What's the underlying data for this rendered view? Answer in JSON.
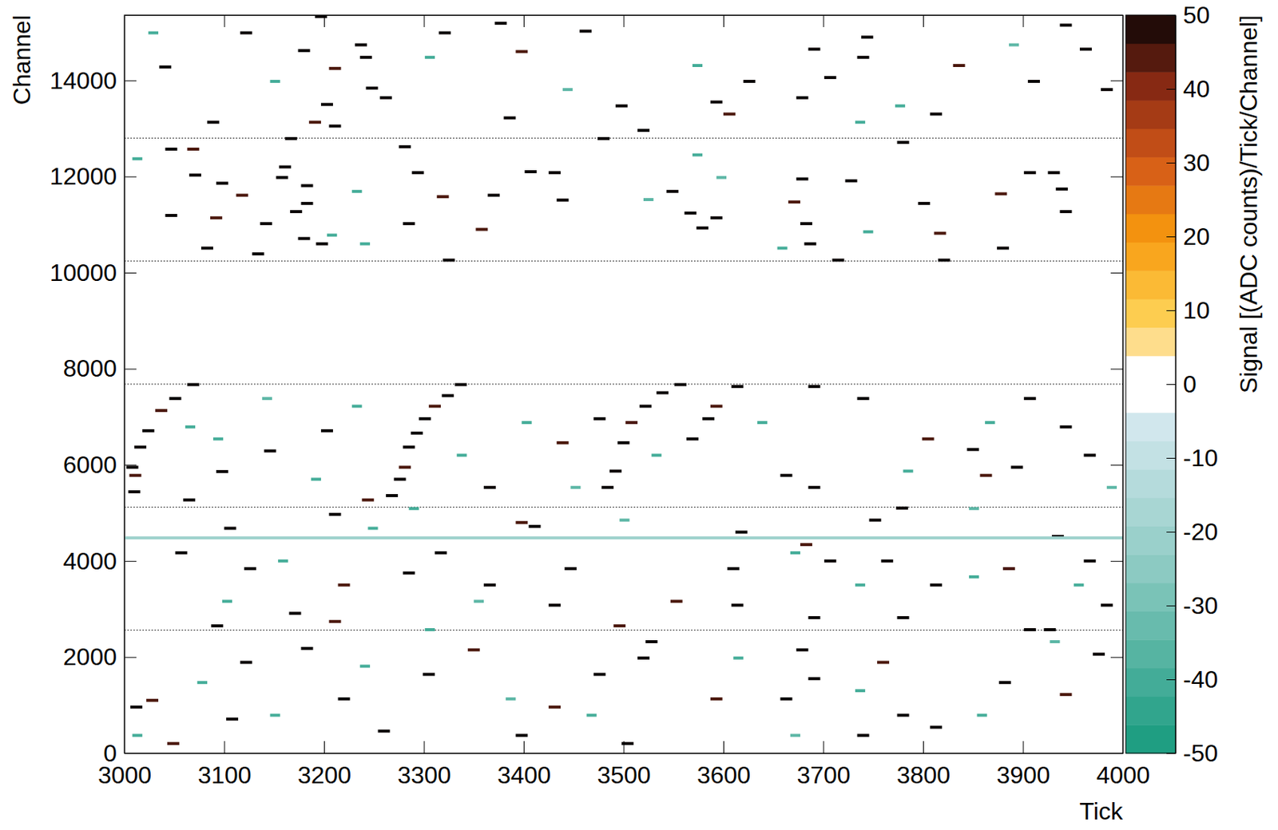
{
  "chart_data": {
    "type": "heatmap",
    "x_label": "Tick",
    "y_label": "Channel",
    "xlim": [
      3000,
      4000
    ],
    "ylim": [
      0,
      15360
    ],
    "xticks": [
      3000,
      3100,
      3200,
      3300,
      3400,
      3500,
      3600,
      3700,
      3800,
      3900,
      4000
    ],
    "yticks": [
      0,
      2000,
      4000,
      6000,
      8000,
      10000,
      12000,
      14000
    ],
    "boundaries": [
      2560,
      5120,
      7680,
      10240,
      12800
    ],
    "colorbar": {
      "label": "Signal [(ADC counts)/Tick/Channel]",
      "range": [
        -50,
        50
      ],
      "ticks": [
        -50,
        -40,
        -30,
        -20,
        -10,
        0,
        10,
        20,
        30,
        40,
        50
      ]
    },
    "cells": [
      [
        3191,
        3203,
        15330,
        50
      ],
      [
        3456,
        3468,
        15025,
        50
      ],
      [
        3174,
        3186,
        14620,
        50
      ],
      [
        3231,
        3243,
        14740,
        50
      ],
      [
        3236,
        3248,
        14480,
        50
      ],
      [
        3205,
        3217,
        14250,
        45
      ],
      [
        3256,
        3268,
        13640,
        50
      ],
      [
        3242,
        3254,
        13840,
        50
      ],
      [
        3197,
        3209,
        13500,
        50
      ],
      [
        3185,
        3197,
        13130,
        45
      ],
      [
        3205,
        3217,
        13050,
        50
      ],
      [
        3380,
        3392,
        13220,
        50
      ],
      [
        3492,
        3504,
        13470,
        50
      ],
      [
        3514,
        3526,
        12960,
        50
      ],
      [
        3600,
        3612,
        13300,
        45
      ],
      [
        3673,
        3685,
        13640,
        50
      ],
      [
        3701,
        3713,
        14060,
        50
      ],
      [
        3734,
        3746,
        14480,
        50
      ],
      [
        3738,
        3750,
        14900,
        50
      ],
      [
        3685,
        3697,
        14650,
        50
      ],
      [
        3957,
        3969,
        14650,
        50
      ],
      [
        3937,
        3949,
        15150,
        50
      ],
      [
        3830,
        3842,
        14310,
        45
      ],
      [
        3905,
        3917,
        13980,
        50
      ],
      [
        3978,
        3990,
        13810,
        50
      ],
      [
        3807,
        3819,
        13300,
        50
      ],
      [
        3620,
        3632,
        13980,
        50
      ],
      [
        3587,
        3599,
        13550,
        50
      ],
      [
        3315,
        3327,
        14990,
        50
      ],
      [
        3371,
        3383,
        15190,
        50
      ],
      [
        3392,
        3404,
        14600,
        45
      ],
      [
        3116,
        3128,
        14990,
        50
      ],
      [
        3035,
        3047,
        14280,
        50
      ],
      [
        3083,
        3095,
        13130,
        50
      ],
      [
        3024,
        3034,
        14990,
        -40
      ],
      [
        3301,
        3311,
        14480,
        -40
      ],
      [
        3439,
        3449,
        13810,
        -35
      ],
      [
        3569,
        3579,
        14310,
        -40
      ],
      [
        3772,
        3782,
        13470,
        -40
      ],
      [
        3886,
        3896,
        14740,
        -35
      ],
      [
        3146,
        3156,
        13980,
        -40
      ],
      [
        3732,
        3742,
        13130,
        -40
      ],
      [
        3161,
        3173,
        12790,
        50
      ],
      [
        3041,
        3053,
        12570,
        50
      ],
      [
        3063,
        3075,
        12570,
        45
      ],
      [
        3155,
        3167,
        12200,
        50
      ],
      [
        3065,
        3077,
        12030,
        50
      ],
      [
        3092,
        3104,
        11860,
        50
      ],
      [
        3152,
        3164,
        11980,
        50
      ],
      [
        3177,
        3189,
        11810,
        50
      ],
      [
        3112,
        3124,
        11610,
        45
      ],
      [
        3177,
        3189,
        11440,
        50
      ],
      [
        3166,
        3178,
        11270,
        50
      ],
      [
        3136,
        3148,
        11020,
        50
      ],
      [
        3041,
        3053,
        11190,
        50
      ],
      [
        3086,
        3098,
        11140,
        45
      ],
      [
        3174,
        3186,
        10710,
        50
      ],
      [
        3192,
        3204,
        10600,
        50
      ],
      [
        3077,
        3089,
        10510,
        50
      ],
      [
        3128,
        3140,
        10390,
        50
      ],
      [
        3275,
        3287,
        12620,
        50
      ],
      [
        3288,
        3300,
        12080,
        50
      ],
      [
        3313,
        3325,
        11580,
        45
      ],
      [
        3364,
        3376,
        11610,
        50
      ],
      [
        3401,
        3413,
        12100,
        50
      ],
      [
        3425,
        3437,
        12080,
        50
      ],
      [
        3433,
        3445,
        11510,
        50
      ],
      [
        3279,
        3291,
        11020,
        50
      ],
      [
        3352,
        3364,
        10900,
        45
      ],
      [
        3543,
        3555,
        11690,
        50
      ],
      [
        3561,
        3573,
        11240,
        50
      ],
      [
        3573,
        3585,
        10930,
        50
      ],
      [
        3587,
        3599,
        11140,
        50
      ],
      [
        3673,
        3685,
        11950,
        50
      ],
      [
        3665,
        3677,
        11470,
        45
      ],
      [
        3677,
        3689,
        11020,
        50
      ],
      [
        3681,
        3693,
        10600,
        50
      ],
      [
        3722,
        3734,
        11910,
        50
      ],
      [
        3774,
        3786,
        12710,
        50
      ],
      [
        3795,
        3807,
        11440,
        50
      ],
      [
        3811,
        3823,
        10820,
        45
      ],
      [
        3874,
        3886,
        10510,
        50
      ],
      [
        3901,
        3913,
        12080,
        50
      ],
      [
        3925,
        3937,
        12080,
        50
      ],
      [
        3933,
        3945,
        11740,
        50
      ],
      [
        3937,
        3949,
        11270,
        50
      ],
      [
        3872,
        3884,
        11640,
        45
      ],
      [
        3709,
        3721,
        10260,
        50
      ],
      [
        3815,
        3827,
        10260,
        50
      ],
      [
        3319,
        3331,
        10260,
        50
      ],
      [
        3474,
        3486,
        12790,
        50
      ],
      [
        3228,
        3238,
        11690,
        -40
      ],
      [
        3236,
        3246,
        10600,
        -40
      ],
      [
        3593,
        3603,
        11980,
        -35
      ],
      [
        3569,
        3579,
        12450,
        -40
      ],
      [
        3654,
        3664,
        10510,
        -40
      ],
      [
        3740,
        3750,
        10850,
        -40
      ],
      [
        3520,
        3530,
        11520,
        -35
      ],
      [
        3008,
        3018,
        12370,
        -40
      ],
      [
        3203,
        3213,
        10780,
        -40
      ],
      [
        3063,
        3075,
        7670,
        50
      ],
      [
        3045,
        3057,
        7380,
        50
      ],
      [
        3031,
        3043,
        7130,
        45
      ],
      [
        3018,
        3030,
        6710,
        50
      ],
      [
        3010,
        3022,
        6370,
        50
      ],
      [
        3002,
        3014,
        5950,
        50
      ],
      [
        3005,
        3017,
        5780,
        45
      ],
      [
        3004,
        3016,
        5440,
        50
      ],
      [
        3331,
        3343,
        7670,
        50
      ],
      [
        3318,
        3330,
        7440,
        50
      ],
      [
        3305,
        3317,
        7220,
        45
      ],
      [
        3295,
        3307,
        6960,
        50
      ],
      [
        3287,
        3299,
        6660,
        50
      ],
      [
        3279,
        3291,
        6370,
        50
      ],
      [
        3275,
        3287,
        5950,
        45
      ],
      [
        3270,
        3282,
        5700,
        50
      ],
      [
        3262,
        3274,
        5360,
        50
      ],
      [
        3551,
        3563,
        7670,
        50
      ],
      [
        3533,
        3545,
        7500,
        50
      ],
      [
        3516,
        3528,
        7220,
        50
      ],
      [
        3502,
        3514,
        6880,
        45
      ],
      [
        3494,
        3506,
        6460,
        50
      ],
      [
        3486,
        3498,
        5870,
        50
      ],
      [
        3478,
        3490,
        5530,
        50
      ],
      [
        3608,
        3620,
        7630,
        50
      ],
      [
        3587,
        3599,
        7220,
        45
      ],
      [
        3579,
        3591,
        6960,
        50
      ],
      [
        3563,
        3575,
        6540,
        50
      ],
      [
        3734,
        3746,
        7380,
        50
      ],
      [
        3685,
        3697,
        7630,
        50
      ],
      [
        3799,
        3811,
        6540,
        45
      ],
      [
        3901,
        3913,
        7380,
        50
      ],
      [
        3937,
        3949,
        6790,
        50
      ],
      [
        3961,
        3973,
        6200,
        50
      ],
      [
        3888,
        3900,
        5950,
        50
      ],
      [
        3857,
        3869,
        5780,
        45
      ],
      [
        3844,
        3856,
        6320,
        50
      ],
      [
        3685,
        3697,
        5530,
        50
      ],
      [
        3657,
        3669,
        5780,
        50
      ],
      [
        3470,
        3482,
        6960,
        50
      ],
      [
        3433,
        3445,
        6460,
        45
      ],
      [
        3197,
        3209,
        6710,
        50
      ],
      [
        3140,
        3152,
        6290,
        50
      ],
      [
        3092,
        3104,
        5860,
        50
      ],
      [
        3360,
        3372,
        5530,
        50
      ],
      [
        3238,
        3250,
        5270,
        45
      ],
      [
        3059,
        3071,
        5270,
        50
      ],
      [
        3061,
        3071,
        6790,
        -40
      ],
      [
        3089,
        3099,
        6540,
        -40
      ],
      [
        3138,
        3148,
        7380,
        -35
      ],
      [
        3228,
        3238,
        7220,
        -40
      ],
      [
        3333,
        3343,
        6200,
        -40
      ],
      [
        3398,
        3408,
        6880,
        -40
      ],
      [
        3447,
        3457,
        5530,
        -35
      ],
      [
        3634,
        3644,
        6880,
        -40
      ],
      [
        3780,
        3790,
        5870,
        -40
      ],
      [
        3862,
        3872,
        6880,
        -40
      ],
      [
        3984,
        3994,
        5530,
        -35
      ],
      [
        3528,
        3538,
        6200,
        -40
      ],
      [
        3187,
        3197,
        5700,
        -40
      ],
      [
        3205,
        3217,
        4970,
        50
      ],
      [
        3100,
        3112,
        4680,
        50
      ],
      [
        3392,
        3404,
        4800,
        45
      ],
      [
        3405,
        3417,
        4720,
        50
      ],
      [
        3773,
        3785,
        5100,
        50
      ],
      [
        3746,
        3758,
        4850,
        50
      ],
      [
        3612,
        3624,
        4600,
        50
      ],
      [
        3677,
        3689,
        4340,
        45
      ],
      [
        3701,
        3713,
        4000,
        50
      ],
      [
        3758,
        3770,
        4000,
        50
      ],
      [
        3051,
        3063,
        4170,
        50
      ],
      [
        3120,
        3132,
        3840,
        50
      ],
      [
        3214,
        3226,
        3500,
        45
      ],
      [
        3279,
        3291,
        3750,
        50
      ],
      [
        3311,
        3323,
        4170,
        50
      ],
      [
        3360,
        3372,
        3500,
        50
      ],
      [
        3441,
        3453,
        3840,
        50
      ],
      [
        3547,
        3559,
        3160,
        45
      ],
      [
        3604,
        3616,
        3840,
        50
      ],
      [
        3608,
        3620,
        3080,
        50
      ],
      [
        3685,
        3697,
        2820,
        50
      ],
      [
        3807,
        3819,
        3500,
        50
      ],
      [
        3880,
        3892,
        3840,
        45
      ],
      [
        3929,
        3941,
        4510,
        50
      ],
      [
        3978,
        3990,
        3080,
        50
      ],
      [
        3165,
        3177,
        2910,
        50
      ],
      [
        3087,
        3099,
        2650,
        50
      ],
      [
        3205,
        3217,
        2740,
        45
      ],
      [
        3774,
        3786,
        2820,
        50
      ],
      [
        3901,
        3913,
        2570,
        50
      ],
      [
        3921,
        3933,
        2570,
        50
      ],
      [
        3425,
        3437,
        3080,
        50
      ],
      [
        3490,
        3502,
        2650,
        45
      ],
      [
        3961,
        3973,
        4000,
        50
      ],
      [
        3154,
        3164,
        4000,
        -40
      ],
      [
        3244,
        3254,
        4680,
        -40
      ],
      [
        3496,
        3506,
        4850,
        -35
      ],
      [
        3667,
        3677,
        4170,
        -40
      ],
      [
        3732,
        3742,
        3500,
        -40
      ],
      [
        3846,
        3856,
        3670,
        -40
      ],
      [
        3350,
        3360,
        3160,
        -35
      ],
      [
        3098,
        3108,
        3160,
        -40
      ],
      [
        3951,
        3961,
        3500,
        -40
      ],
      [
        3285,
        3295,
        5090,
        -40
      ],
      [
        3846,
        3856,
        5090,
        -35
      ],
      [
        3301,
        3311,
        2570,
        -40
      ],
      [
        3000,
        4000,
        4480,
        -20
      ],
      [
        3177,
        3189,
        2180,
        50
      ],
      [
        3116,
        3128,
        1890,
        50
      ],
      [
        3022,
        3034,
        1100,
        45
      ],
      [
        3006,
        3018,
        960,
        50
      ],
      [
        3102,
        3114,
        710,
        50
      ],
      [
        3299,
        3311,
        1640,
        50
      ],
      [
        3344,
        3356,
        2150,
        45
      ],
      [
        3470,
        3482,
        1640,
        50
      ],
      [
        3522,
        3534,
        2320,
        50
      ],
      [
        3514,
        3526,
        1980,
        50
      ],
      [
        3587,
        3599,
        1130,
        45
      ],
      [
        3673,
        3685,
        2150,
        50
      ],
      [
        3685,
        3697,
        1550,
        50
      ],
      [
        3657,
        3669,
        1130,
        50
      ],
      [
        3754,
        3766,
        1890,
        45
      ],
      [
        3774,
        3786,
        790,
        50
      ],
      [
        3876,
        3888,
        1470,
        50
      ],
      [
        3970,
        3982,
        2060,
        50
      ],
      [
        3937,
        3949,
        1220,
        45
      ],
      [
        3392,
        3404,
        370,
        50
      ],
      [
        3498,
        3510,
        200,
        50
      ],
      [
        3254,
        3266,
        460,
        50
      ],
      [
        3043,
        3055,
        200,
        45
      ],
      [
        3807,
        3819,
        540,
        50
      ],
      [
        3214,
        3226,
        1130,
        50
      ],
      [
        3734,
        3746,
        370,
        50
      ],
      [
        3425,
        3437,
        960,
        45
      ],
      [
        3073,
        3083,
        1470,
        -40
      ],
      [
        3146,
        3156,
        790,
        -40
      ],
      [
        3382,
        3392,
        1130,
        -35
      ],
      [
        3463,
        3473,
        790,
        -40
      ],
      [
        3610,
        3620,
        1980,
        -40
      ],
      [
        3854,
        3864,
        790,
        -40
      ],
      [
        3927,
        3937,
        2320,
        -35
      ],
      [
        3732,
        3742,
        1300,
        -40
      ],
      [
        3236,
        3246,
        1810,
        -40
      ],
      [
        3008,
        3018,
        370,
        -40
      ],
      [
        3667,
        3677,
        370,
        -35
      ]
    ]
  }
}
